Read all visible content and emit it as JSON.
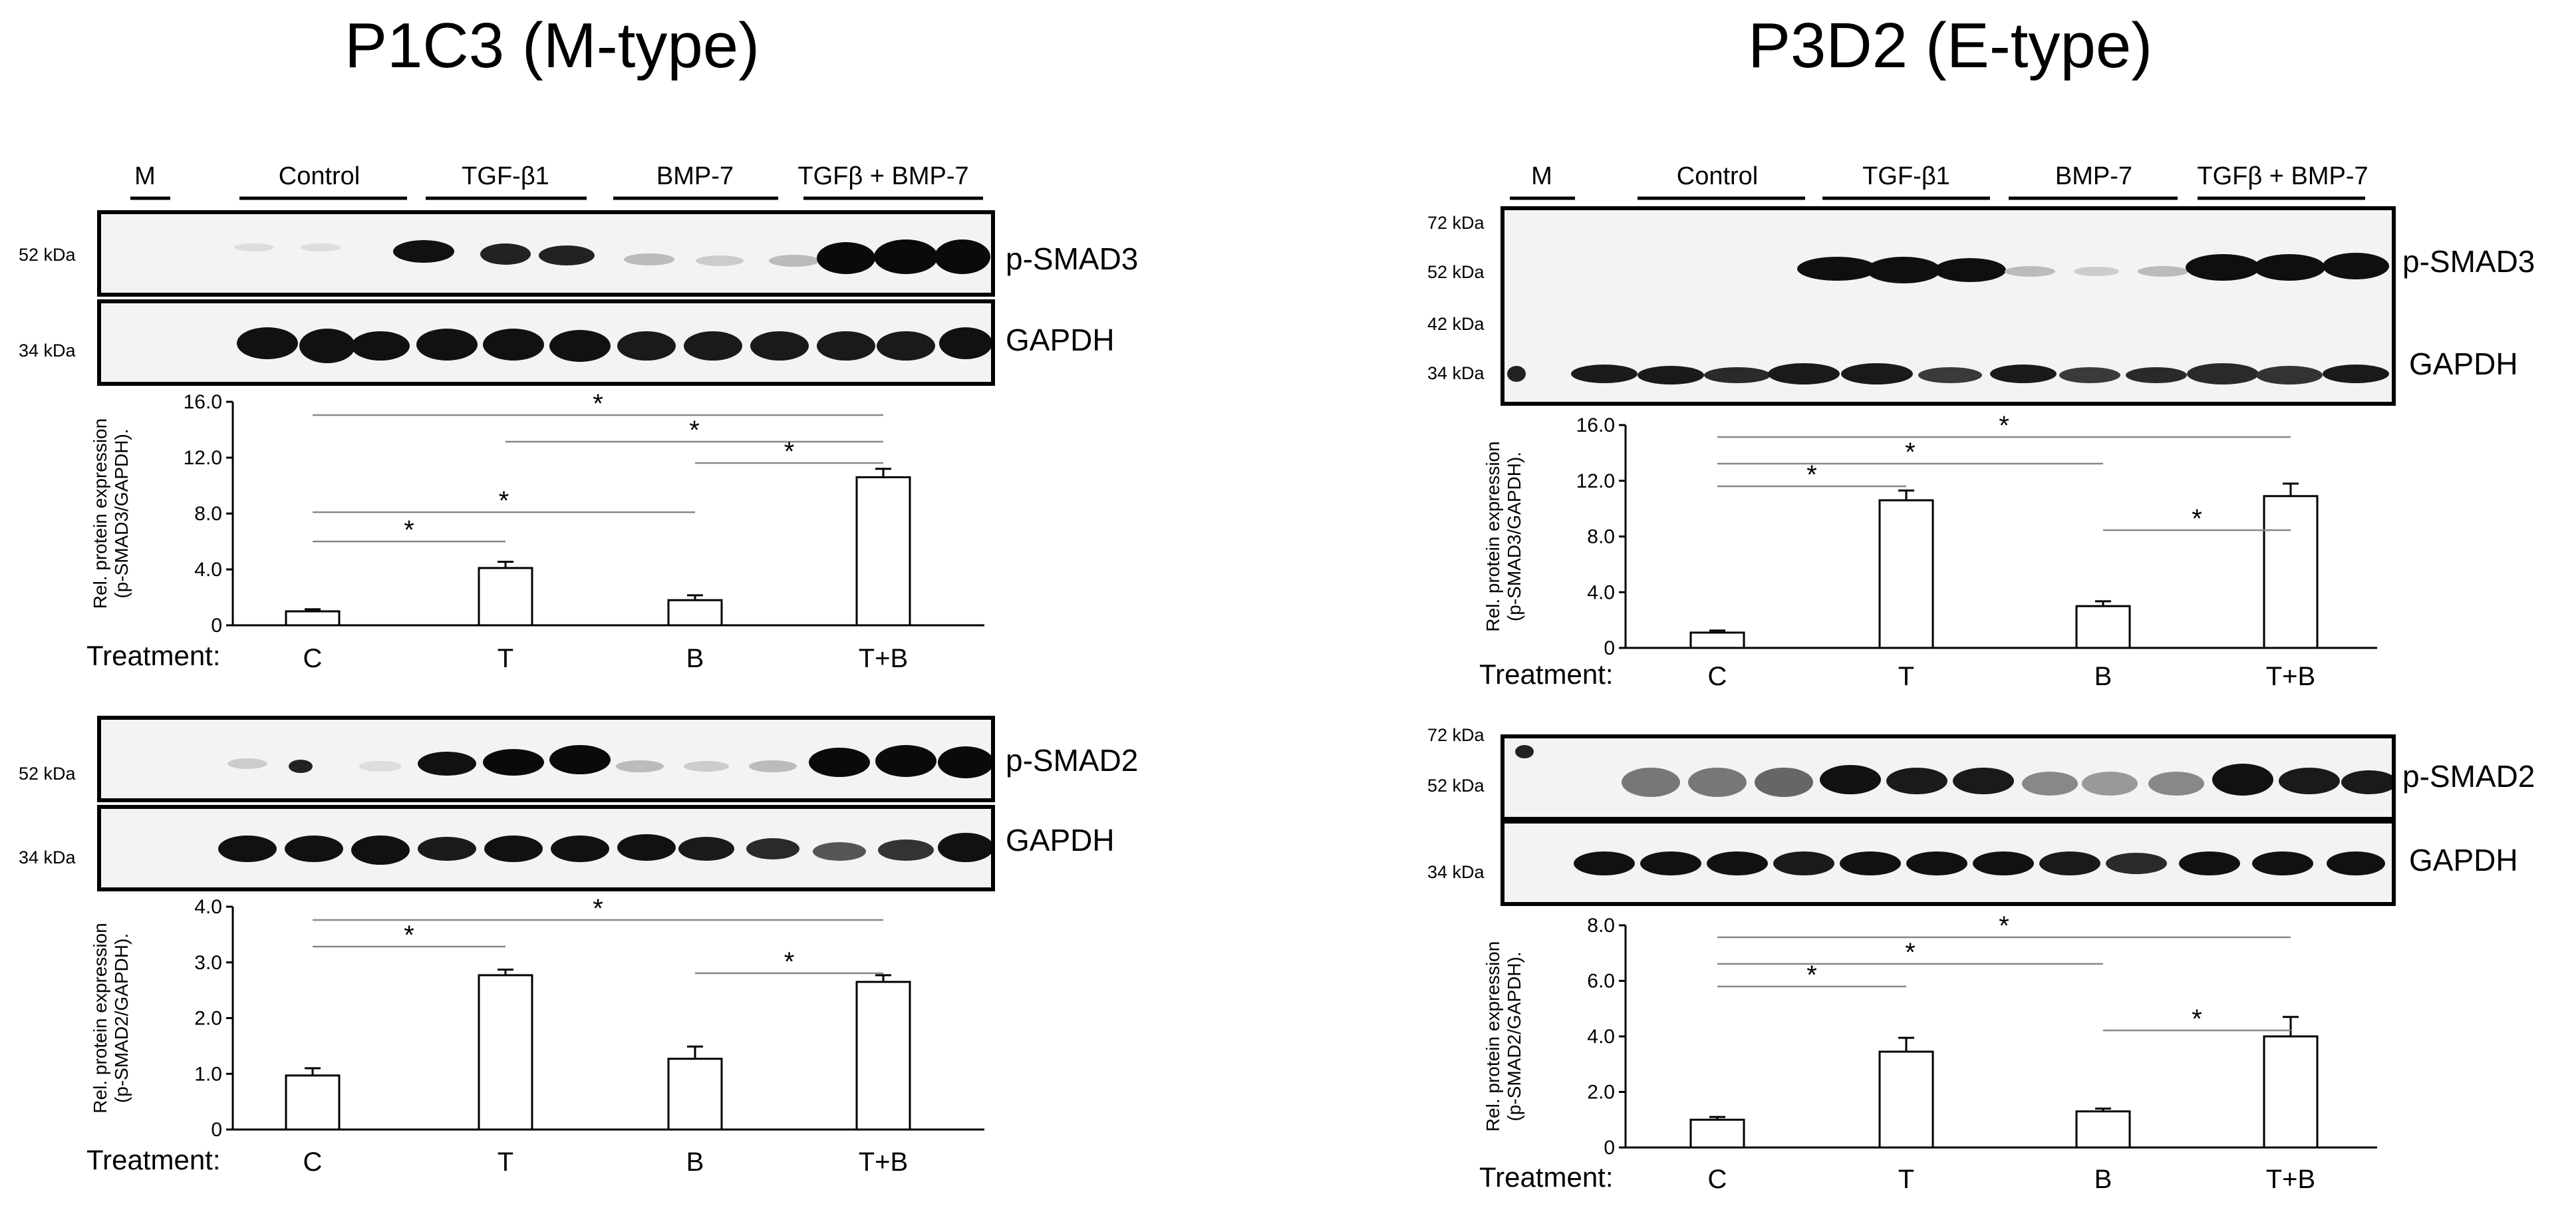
{
  "panels": [
    {
      "title": "P1C3 (M-type)"
    },
    {
      "title": "P3D2 (E-type)"
    }
  ],
  "lane_labels": {
    "marker": "M",
    "control": "Control",
    "tgf": "TGF-β1",
    "bmp": "BMP-7",
    "combo": "TGFβ + BMP-7"
  },
  "blot_labels": {
    "psmad3": "p-SMAD3",
    "psmad2": "p-SMAD2",
    "gapdh": "GAPDH"
  },
  "kda": {
    "k72": "72 kDa",
    "k52": "52 kDa",
    "k42": "42 kDa",
    "k34": "34 kDa"
  },
  "treatment_label": "Treatment:",
  "colors": {
    "bar_fill": "#ffffff",
    "bar_stroke": "#000000",
    "bracket": "#888888",
    "blot_bg": "#f3f3f3",
    "band": "#111111"
  },
  "chart_data": [
    {
      "panel": "P1C3 (M-type)",
      "type": "bar",
      "categories": [
        "C",
        "T",
        "B",
        "T+B"
      ],
      "values": [
        1.0,
        4.1,
        1.8,
        10.6
      ],
      "errors": [
        0.15,
        0.45,
        0.35,
        0.6
      ],
      "ylabel_line1": "Rel. protein expression",
      "ylabel_line2": "(p-SMAD3/GAPDH).",
      "ylim": [
        0,
        16
      ],
      "yticks": [
        "0",
        "4.0",
        "8.0",
        "12.0",
        "16.0"
      ],
      "significance": [
        {
          "from": "C",
          "to": "T+B",
          "label": "*"
        },
        {
          "from": "T",
          "to": "T+B",
          "label": "*"
        },
        {
          "from": "B",
          "to": "T+B",
          "label": "*"
        },
        {
          "from": "C",
          "to": "B",
          "label": "*"
        },
        {
          "from": "C",
          "to": "T",
          "label": "*"
        }
      ]
    },
    {
      "panel": "P1C3 (M-type)",
      "type": "bar",
      "categories": [
        "C",
        "T",
        "B",
        "T+B"
      ],
      "values": [
        0.97,
        2.77,
        1.27,
        2.65
      ],
      "errors": [
        0.13,
        0.1,
        0.22,
        0.12
      ],
      "ylabel_line1": "Rel. protein expression",
      "ylabel_line2": "(p-SMAD2/GAPDH).",
      "ylim": [
        0,
        4
      ],
      "yticks": [
        "0",
        "1.0",
        "2.0",
        "3.0",
        "4.0"
      ],
      "significance": [
        {
          "from": "C",
          "to": "T+B",
          "label": "*"
        },
        {
          "from": "C",
          "to": "T",
          "label": "*"
        },
        {
          "from": "B",
          "to": "T+B",
          "label": "*"
        }
      ]
    },
    {
      "panel": "P3D2 (E-type)",
      "type": "bar",
      "categories": [
        "C",
        "T",
        "B",
        "T+B"
      ],
      "values": [
        1.1,
        10.6,
        3.0,
        10.9
      ],
      "errors": [
        0.15,
        0.7,
        0.35,
        0.9
      ],
      "ylabel_line1": "Rel. protein expression",
      "ylabel_line2": "(p-SMAD3/GAPDH).",
      "ylim": [
        0,
        16
      ],
      "yticks": [
        "0",
        "4.0",
        "8.0",
        "12.0",
        "16.0"
      ],
      "significance": [
        {
          "from": "C",
          "to": "T+B",
          "label": "*"
        },
        {
          "from": "C",
          "to": "B",
          "label": "*"
        },
        {
          "from": "C",
          "to": "T",
          "label": "*"
        },
        {
          "from": "B",
          "to": "T+B",
          "label": "*"
        }
      ]
    },
    {
      "panel": "P3D2 (E-type)",
      "type": "bar",
      "categories": [
        "C",
        "T",
        "B",
        "T+B"
      ],
      "values": [
        1.0,
        3.45,
        1.3,
        4.0
      ],
      "errors": [
        0.1,
        0.5,
        0.1,
        0.7
      ],
      "ylabel_line1": "Rel. protein expression",
      "ylabel_line2": "(p-SMAD2/GAPDH).",
      "ylim": [
        0,
        8
      ],
      "yticks": [
        "0",
        "2.0",
        "4.0",
        "6.0",
        "8.0"
      ],
      "significance": [
        {
          "from": "C",
          "to": "T+B",
          "label": "*"
        },
        {
          "from": "C",
          "to": "B",
          "label": "*"
        },
        {
          "from": "C",
          "to": "T",
          "label": "*"
        },
        {
          "from": "B",
          "to": "T+B",
          "label": "*"
        }
      ]
    }
  ]
}
